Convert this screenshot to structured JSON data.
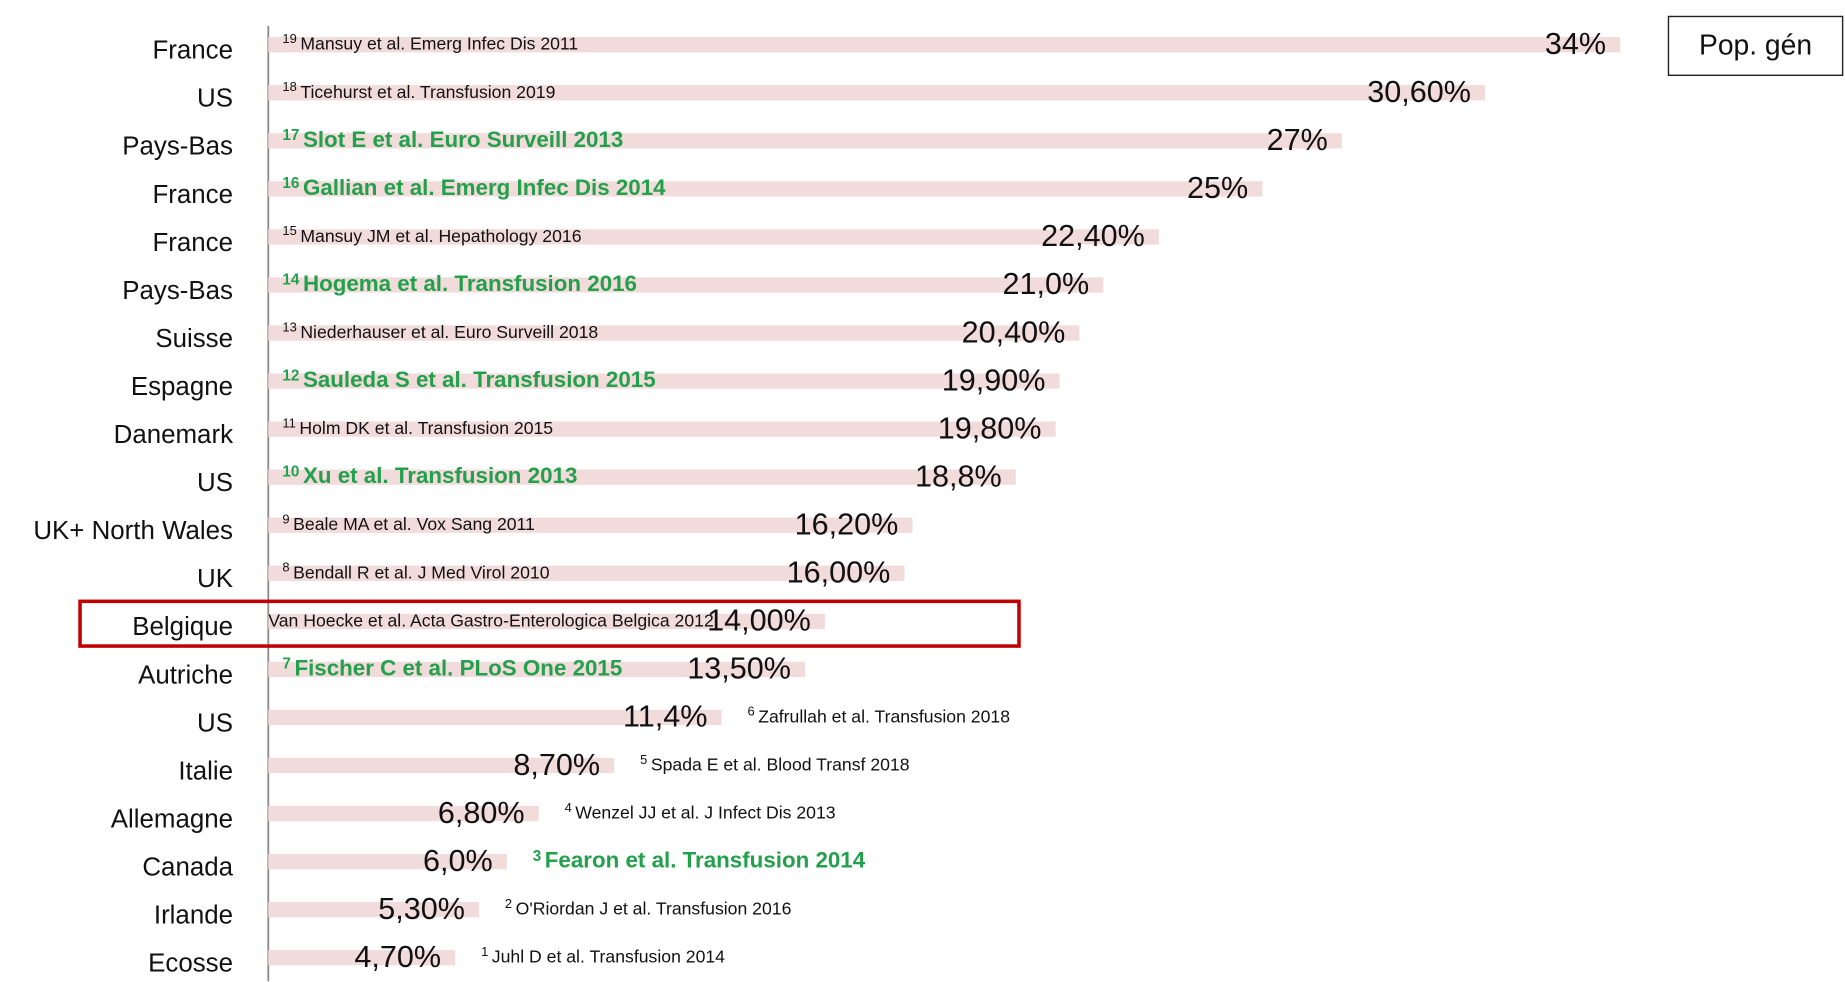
{
  "chart_data": {
    "type": "bar",
    "orientation": "horizontal",
    "categories": [
      "France",
      "US",
      "Pays-Bas",
      "France",
      "France",
      "Pays-Bas",
      "Suisse",
      "Espagne",
      "Danemark",
      "US",
      "UK+ North Wales",
      "UK",
      "Belgique",
      "Autriche",
      "US",
      "Italie",
      "Allemagne",
      "Canada",
      "Irlande",
      "Ecosse"
    ],
    "values": [
      34,
      30.6,
      27,
      25,
      22.4,
      21.0,
      20.4,
      19.9,
      19.8,
      18.8,
      16.2,
      16.0,
      14.0,
      13.5,
      11.4,
      8.7,
      6.8,
      6.0,
      5.3,
      4.7
    ],
    "value_labels": [
      "34%",
      "30,60%",
      "27%",
      "25%",
      "22,40%",
      "21,0%",
      "20,40%",
      "19,90%",
      "19,80%",
      "18,8%",
      "16,20%",
      "16,00%",
      "14,00%",
      "13,50%",
      "11,4%",
      "8,70%",
      "6,80%",
      "6,0%",
      "5,30%",
      "4,70%"
    ],
    "references": [
      {
        "number": "19",
        "text": "Mansuy et al. Emerg Infec Dis 2011",
        "highlight": false
      },
      {
        "number": "18",
        "text": "Ticehurst et al. Transfusion 2019",
        "highlight": false
      },
      {
        "number": "17",
        "text": "Slot E et al. Euro Surveill 2013",
        "highlight": true
      },
      {
        "number": "16",
        "text": "Gallian et al. Emerg Infec Dis 2014",
        "highlight": true
      },
      {
        "number": "15",
        "text": "Mansuy JM et al. Hepathology 2016",
        "highlight": false
      },
      {
        "number": "14",
        "text": "Hogema et al. Transfusion 2016",
        "highlight": true
      },
      {
        "number": "13",
        "text": "Niederhauser et al. Euro Surveill 2018",
        "highlight": false
      },
      {
        "number": "12",
        "text": "Sauleda S et al. Transfusion 2015",
        "highlight": true
      },
      {
        "number": "11",
        "text": "Holm DK et al. Transfusion 2015",
        "highlight": false
      },
      {
        "number": "10",
        "text": "Xu et al. Transfusion 2013",
        "highlight": true
      },
      {
        "number": "9",
        "text": "Beale MA et al. Vox Sang 2011",
        "highlight": false
      },
      {
        "number": "8",
        "text": "Bendall R et al. J Med Virol 2010",
        "highlight": false
      },
      {
        "text": "Van Hoecke et al. Acta Gastro-Enterologica Belgica  2012",
        "highlight": false
      },
      {
        "number": "7",
        "text": "Fischer C et al. PLoS One 2015",
        "highlight": true
      },
      {
        "number": "6",
        "text": "Zafrullah et al. Transfusion 2018",
        "highlight": false
      },
      {
        "number": "5",
        "text": "Spada E et al. Blood Transf 2018",
        "highlight": false
      },
      {
        "number": "4",
        "text": "Wenzel JJ et al. J Infect Dis 2013",
        "highlight": false
      },
      {
        "number": "3",
        "text": "Fearon et al. Transfusion 2014",
        "highlight": true
      },
      {
        "number": "2",
        "text": "O'Riordan J et al. Transfusion 2016",
        "highlight": false
      },
      {
        "number": "1",
        "text": "Juhl D et al. Transfusion 2014",
        "highlight": false
      }
    ],
    "color": "#f2dcdb",
    "highlight_color": "#22a04b",
    "boxed_category": 12,
    "box_color": "#c00000",
    "annotation": "Pop. gén",
    "xlim": [
      0,
      34
    ]
  }
}
